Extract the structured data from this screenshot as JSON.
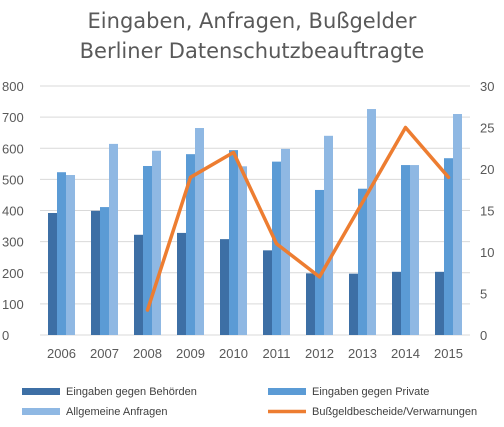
{
  "chart_data": {
    "type": "bar",
    "title": "Eingaben, Anfragen, Bußgelder",
    "subtitle": "Berliner Datenschutzbeauftragte",
    "categories": [
      "2006",
      "2007",
      "2008",
      "2009",
      "2010",
      "2011",
      "2012",
      "2013",
      "2014",
      "2015"
    ],
    "y_left_ticks": [
      "0",
      "100",
      "200",
      "300",
      "400",
      "500",
      "600",
      "700",
      "800"
    ],
    "y_right_ticks": [
      "0",
      "5",
      "10",
      "15",
      "20",
      "25",
      "30"
    ],
    "y_left_lim": [
      0,
      800
    ],
    "y_right_lim": [
      0,
      30
    ],
    "grid": true,
    "legend_position": "bottom",
    "series": [
      {
        "name": "Eingaben gegen Behörden",
        "kind": "bar",
        "axis": "left",
        "color": "#3d6fa5",
        "values": [
          392,
          399,
          322,
          328,
          308,
          272,
          198,
          197,
          203,
          203
        ]
      },
      {
        "name": "Eingaben gegen Private",
        "kind": "bar",
        "axis": "left",
        "color": "#5b9bd5",
        "values": [
          523,
          411,
          543,
          581,
          594,
          557,
          466,
          470,
          546,
          568
        ]
      },
      {
        "name": "Allgemeine Anfragen",
        "kind": "bar",
        "axis": "left",
        "color": "#8fb8e3",
        "values": [
          514,
          614,
          592,
          665,
          542,
          598,
          640,
          726,
          546,
          710
        ]
      },
      {
        "name": "Bußgeldbescheide/Verwarnungen",
        "kind": "line",
        "axis": "right",
        "color": "#ed7d31",
        "values": [
          null,
          null,
          3,
          19,
          22,
          11,
          7,
          16,
          25,
          19
        ]
      }
    ]
  },
  "colors": {
    "grid": "#d9d9d9",
    "axis_text": "#595959"
  }
}
